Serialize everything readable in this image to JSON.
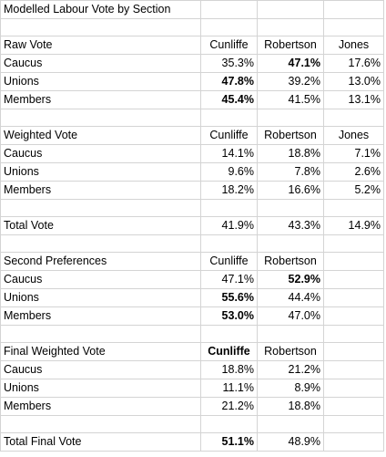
{
  "title": "Modelled Labour Vote by Section",
  "sections": [
    {
      "heading": "Raw Vote",
      "columns": [
        "Cunliffe",
        "Robertson",
        "Jones"
      ],
      "rows": [
        {
          "label": "Caucus",
          "values": [
            "35.3%",
            "47.1%",
            "17.6%"
          ],
          "bold": [
            false,
            true,
            false
          ]
        },
        {
          "label": "Unions",
          "values": [
            "47.8%",
            "39.2%",
            "13.0%"
          ],
          "bold": [
            true,
            false,
            false
          ]
        },
        {
          "label": "Members",
          "values": [
            "45.4%",
            "41.5%",
            "13.1%"
          ],
          "bold": [
            true,
            false,
            false
          ]
        }
      ]
    },
    {
      "heading": "Weighted Vote",
      "columns": [
        "Cunliffe",
        "Robertson",
        "Jones"
      ],
      "rows": [
        {
          "label": "Caucus",
          "values": [
            "14.1%",
            "18.8%",
            "7.1%"
          ],
          "bold": [
            false,
            false,
            false
          ]
        },
        {
          "label": "Unions",
          "values": [
            "9.6%",
            "7.8%",
            "2.6%"
          ],
          "bold": [
            false,
            false,
            false
          ]
        },
        {
          "label": "Members",
          "values": [
            "18.2%",
            "16.6%",
            "5.2%"
          ],
          "bold": [
            false,
            false,
            false
          ]
        }
      ]
    },
    {
      "heading": "Total Vote",
      "total_values": [
        "41.9%",
        "43.3%",
        "14.9%"
      ]
    },
    {
      "heading": "Second Preferences",
      "columns": [
        "Cunliffe",
        "Robertson",
        ""
      ],
      "rows": [
        {
          "label": "Caucus",
          "values": [
            "47.1%",
            "52.9%",
            ""
          ],
          "bold": [
            false,
            true,
            false
          ]
        },
        {
          "label": "Unions",
          "values": [
            "55.6%",
            "44.4%",
            ""
          ],
          "bold": [
            true,
            false,
            false
          ]
        },
        {
          "label": "Members",
          "values": [
            "53.0%",
            "47.0%",
            ""
          ],
          "bold": [
            true,
            false,
            false
          ]
        }
      ]
    },
    {
      "heading": "Final Weighted Vote",
      "columns": [
        "Cunliffe",
        "Robertson",
        ""
      ],
      "column_bold": [
        true,
        false,
        false
      ],
      "rows": [
        {
          "label": "Caucus",
          "values": [
            "18.8%",
            "21.2%",
            ""
          ],
          "bold": [
            false,
            false,
            false
          ]
        },
        {
          "label": "Unions",
          "values": [
            "11.1%",
            "8.9%",
            ""
          ],
          "bold": [
            false,
            false,
            false
          ]
        },
        {
          "label": "Members",
          "values": [
            "21.2%",
            "18.8%",
            ""
          ],
          "bold": [
            false,
            false,
            false
          ]
        }
      ]
    },
    {
      "heading": "Total Final Vote",
      "total_values": [
        "51.1%",
        "48.9%",
        ""
      ],
      "total_bold": [
        true,
        false,
        false
      ]
    }
  ]
}
